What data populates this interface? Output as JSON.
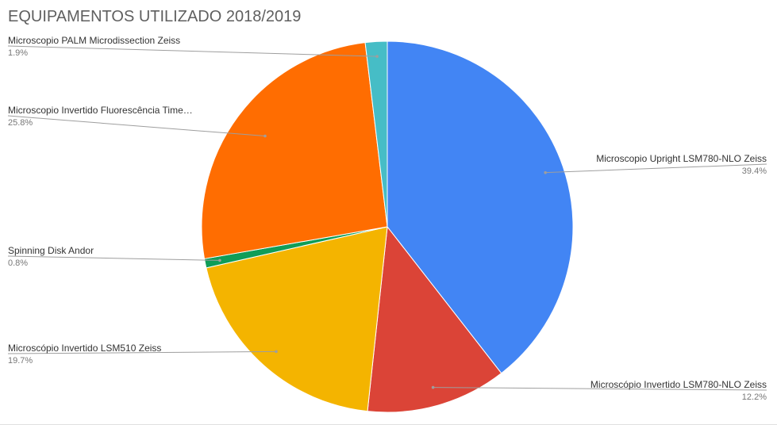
{
  "chart_data": {
    "type": "pie",
    "title": "EQUIPAMENTOS UTILIZADO 2018/2019",
    "start_angle_deg": 0,
    "direction": "clockwise",
    "legend": "none",
    "slices": [
      {
        "label": "Microscopio Upright LSM780-NLO Zeiss",
        "value": 39.4,
        "display": "39.4%",
        "color": "#4285f4"
      },
      {
        "label": "Microscópio Invertido LSM780-NLO Zeiss",
        "value": 12.2,
        "display": "12.2%",
        "color": "#db4437"
      },
      {
        "label": "Microscópio Invertido LSM510 Zeiss",
        "value": 19.7,
        "display": "19.7%",
        "color": "#f4b400"
      },
      {
        "label": "Spinning Disk Andor",
        "value": 0.8,
        "display": "0.8%",
        "color": "#0f9d58"
      },
      {
        "label": "Microscopio Invertido Fluorescência Time…",
        "value": 25.8,
        "display": "25.8%",
        "color": "#ff6d01"
      },
      {
        "label": "Microscopio PALM Microdissection Zeiss",
        "value": 1.9,
        "display": "1.9%",
        "color": "#46bdc6"
      }
    ]
  }
}
